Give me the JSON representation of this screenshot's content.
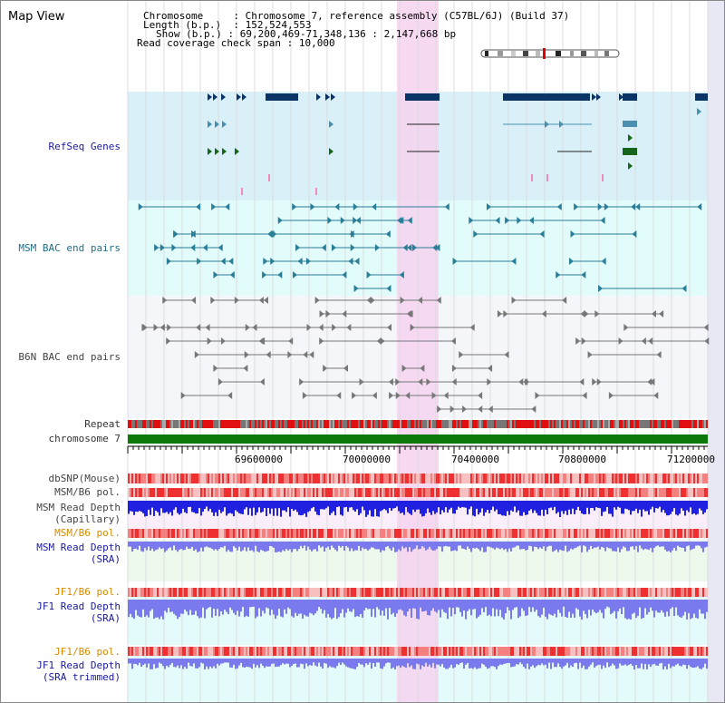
{
  "view_title": "Map View",
  "info": {
    "chromosome_label": "Chromosome",
    "chromosome_value": "Chromosome 7, reference assembly (C57BL/6J) (Build 37)",
    "length_label": "Length (b.p.)",
    "length_value": "152,524,553",
    "show_label": "Show (b.p.)",
    "show_value": "69,200,469-71,348,136 : 2,147,668 bp",
    "coverage_label": "Read coverage check span",
    "coverage_value": "10,000"
  },
  "tracks": {
    "refseq": "RefSeq Genes",
    "msm_bac": "MSM BAC end pairs",
    "b6n_bac": "B6N BAC end pairs",
    "repeat": "Repeat",
    "chromosome": "chromosome 7",
    "dbsnp": "dbSNP(Mouse)",
    "msm_b6_pol_1": "MSM/B6 pol.",
    "msm_depth_cap_1": "MSM Read Depth",
    "msm_depth_cap_2": "(Capillary)",
    "msm_b6_pol_2": "MSM/B6 pol.",
    "msm_depth_sra_1": "MSM Read Depth",
    "msm_depth_sra_2": "(SRA)",
    "jf1_b6_pol_1": "JF1/B6 pol.",
    "jf1_depth_sra_1": "JF1 Read Depth",
    "jf1_depth_sra_2": "(SRA)",
    "jf1_b6_pol_2": "JF1/B6 pol.",
    "jf1_depth_trim_1": "JF1 Read Depth",
    "jf1_depth_trim_2": "(SRA trimmed)"
  },
  "axis_ticks": [
    "69600000",
    "70000000",
    "70400000",
    "70800000",
    "71200000"
  ],
  "colors": {
    "refseq_bg": "#daf0f8",
    "msm_bg": "#e2fbfb",
    "highlight": "#f6d2f0",
    "gene_dark": "#0a3366",
    "gene_mid": "#4a8fb0",
    "gene_green": "#15651d",
    "chrom_bar": "#0b7a0b",
    "depth_blue": "#2020e0",
    "depth_sra": "#7a7aee",
    "pol_red": "#ee4444"
  }
}
